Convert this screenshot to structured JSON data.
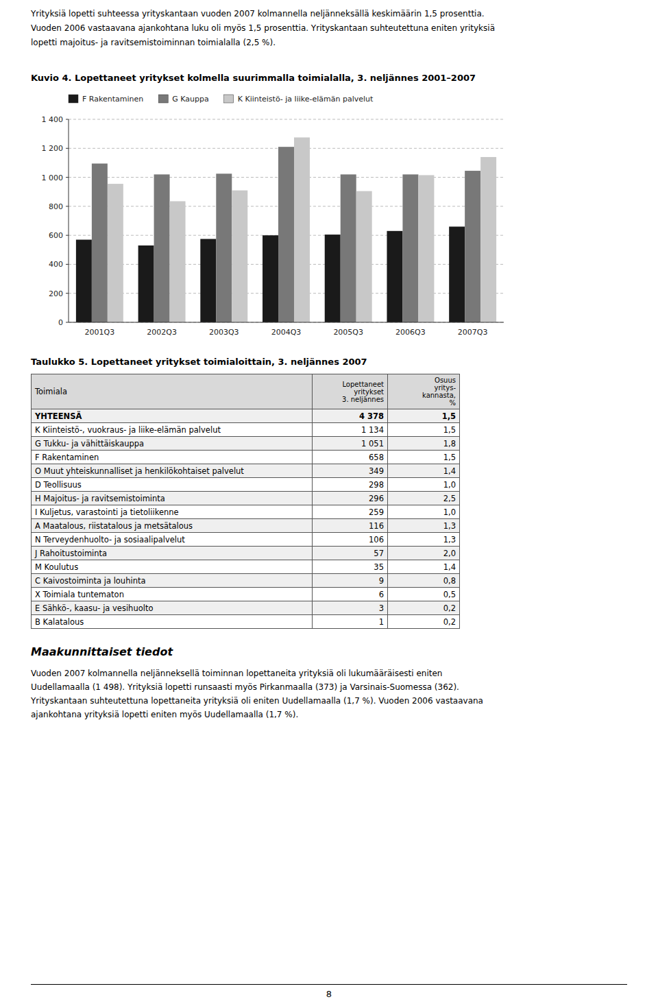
{
  "intro_lines": [
    "Yrityksiä lopetti suhteessa yrityskantaan vuoden 2007 kolmannella neljänneksällä keskimäärin 1,5 prosenttia.",
    "Vuoden 2006 vastaavana ajankohtana luku oli myös 1,5 prosenttia. Yrityskantaan suhteutettuna eniten yrityksiä",
    "lopetti majoitus- ja ravitsemistoiminnan toimialalla (2,5 %)."
  ],
  "chart_data": {
    "type": "bar",
    "title": "Kuvio 4. Lopettaneet yritykset kolmella suurimmalla toimialalla, 3. neljännes 2001–2007",
    "categories": [
      "2001Q3",
      "2002Q3",
      "2003Q3",
      "2004Q3",
      "2005Q3",
      "2006Q3",
      "2007Q3"
    ],
    "series": [
      {
        "name": "F Rakentaminen",
        "color": "#1a1a1a",
        "values": [
          570,
          530,
          575,
          600,
          605,
          630,
          660
        ]
      },
      {
        "name": "G Kauppa",
        "color": "#787878",
        "values": [
          1095,
          1020,
          1025,
          1210,
          1020,
          1020,
          1045
        ]
      },
      {
        "name": "K Kiinteistö- ja liike-elämän palvelut",
        "color": "#c8c8c8",
        "values": [
          955,
          835,
          910,
          1275,
          905,
          1015,
          1140
        ]
      }
    ],
    "ylim": [
      0,
      1400
    ],
    "yticks": [
      0,
      200,
      400,
      600,
      800,
      {
        "value": 1000,
        "label": "1 000"
      },
      {
        "value": 1200,
        "label": "1 200"
      },
      {
        "value": 1400,
        "label": "1 400"
      }
    ],
    "grid": true,
    "legend": "top"
  },
  "table": {
    "title": "Taulukko 5. Lopettaneet yritykset toimialoittain, 3. neljännes 2007",
    "header": [
      "Toimiala",
      "Lopettaneet\nyritykset\n3. neljännes",
      "Osuus\nyritys-\nkannasta,\n%"
    ],
    "rows": [
      [
        "YHTEENSÄ",
        "4 378",
        "1,5"
      ],
      [
        "K Kiinteistö-, vuokraus- ja liike-elämän palvelut",
        "1 134",
        "1,5"
      ],
      [
        "G Tukku- ja vähittäiskauppa",
        "1 051",
        "1,8"
      ],
      [
        "F Rakentaminen",
        "658",
        "1,5"
      ],
      [
        "O Muut yhteiskunnalliset ja henkilökohtaiset palvelut",
        "349",
        "1,4"
      ],
      [
        "D Teollisuus",
        "298",
        "1,0"
      ],
      [
        "H Majoitus- ja ravitsemistoiminta",
        "296",
        "2,5"
      ],
      [
        "I Kuljetus, varastointi ja tietoliikenne",
        "259",
        "1,0"
      ],
      [
        "A Maatalous, riistatalous ja metsätalous",
        "116",
        "1,3"
      ],
      [
        "N Terveydenhuolto- ja sosiaalipalvelut",
        "106",
        "1,3"
      ],
      [
        "J Rahoitustoiminta",
        "57",
        "2,0"
      ],
      [
        "M Koulutus",
        "35",
        "1,4"
      ],
      [
        "C Kaivostoiminta ja louhinta",
        "9",
        "0,8"
      ],
      [
        "X Toimiala tuntematon",
        "6",
        "0,5"
      ],
      [
        "E Sähkö-, kaasu- ja vesihuolto",
        "3",
        "0,2"
      ],
      [
        "B Kalatalous",
        "1",
        "0,2"
      ]
    ]
  },
  "section_title": "Maakunnittaiset tiedot",
  "body_text_lines": [
    "Vuoden 2007 kolmannella neljänneksellä toiminnan lopettaneita yrityksiä oli lukumääräisesti eniten",
    "Uudellamaalla (1 498). Yrityksiä lopetti runsaasti myös Pirkanmaalla (373) ja Varsinais-Suomessa (362).",
    "Yrityskantaan suhteutettuna lopettaneita yrityksiä oli eniten Uudellamaalla (1,7 %). Vuoden 2006 vastaavana",
    "ajankohtana yrityksiä lopetti eniten myös Uudellamaalla (1,7 %)."
  ],
  "page_number": "8"
}
